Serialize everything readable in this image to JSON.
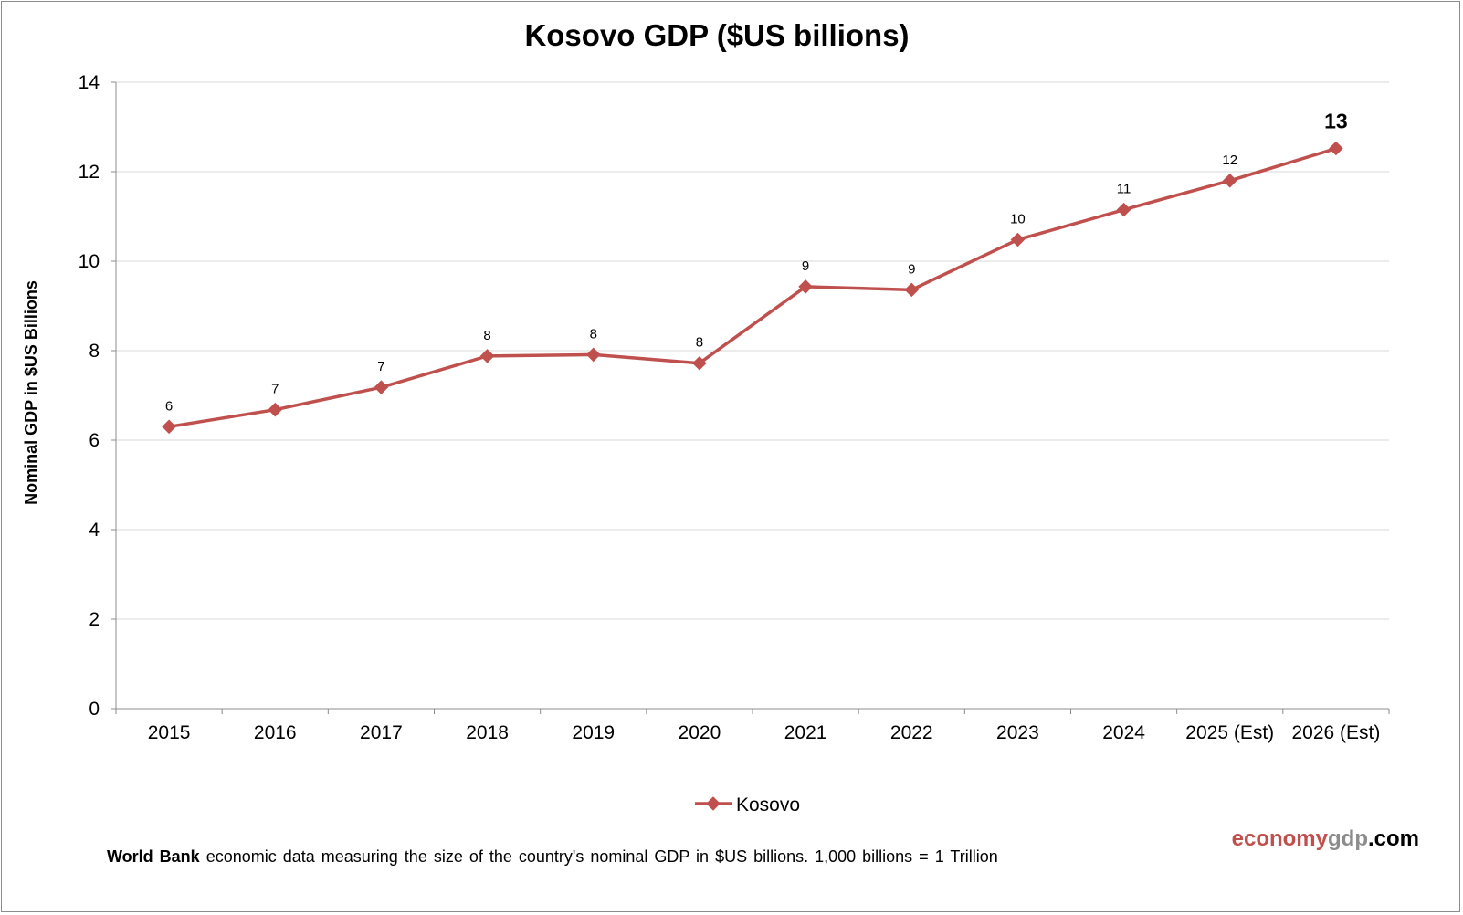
{
  "chart_data": {
    "type": "line",
    "title": "Kosovo GDP ($US billions)",
    "xlabel": "",
    "ylabel": "Nominal GDP in $US Billions",
    "categories": [
      "2015",
      "2016",
      "2017",
      "2018",
      "2019",
      "2020",
      "2021",
      "2022",
      "2023",
      "2024",
      "2025 (Est)",
      "2026 (Est)"
    ],
    "series": [
      {
        "name": "Kosovo",
        "values": [
          6.3,
          6.68,
          7.18,
          7.88,
          7.91,
          7.72,
          9.43,
          9.36,
          10.48,
          11.15,
          11.8,
          12.52
        ],
        "labels": [
          "6",
          "7",
          "7",
          "8",
          "8",
          "8",
          "9",
          "9",
          "10",
          "11",
          "12",
          "13"
        ],
        "color": "#c0504d"
      }
    ],
    "ylim": [
      0,
      14
    ],
    "yticks": [
      0,
      2,
      4,
      6,
      8,
      10,
      12,
      14
    ],
    "grid": true,
    "legend_position": "bottom"
  },
  "footnote": {
    "bold": "World Bank",
    "text": " economic data  measuring  the size of the country's nominal  GDP in $US billions.  1,000 billions = 1 Trillion"
  },
  "brand": {
    "part1": "economy",
    "part2": "gdp",
    "part3": ".com",
    "color1": "#c0504d",
    "color2": "#8c8c8c",
    "color3": "#000000"
  }
}
